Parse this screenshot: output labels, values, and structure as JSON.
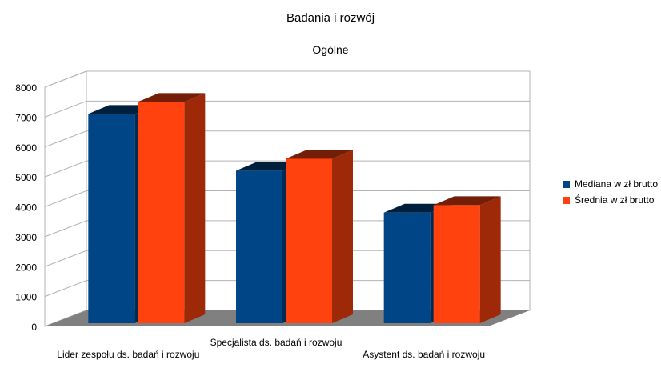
{
  "chart_data": {
    "type": "bar",
    "title": "Badania i rozwój",
    "subtitle": "Ogólne",
    "categories": [
      "Lider zespołu ds. badań i rozwoju",
      "Specjalista ds. badań i rozwoju",
      "Asystent ds. badań i rozwoju"
    ],
    "series": [
      {
        "name": "Mediana w zł brutto",
        "color": "#004586",
        "values": [
          7000,
          5100,
          3700
        ]
      },
      {
        "name": "Średnia w zł brutto",
        "color": "#ff420e",
        "values": [
          7400,
          5500,
          3950
        ]
      }
    ],
    "y_ticks": [
      "0",
      "1000",
      "2000",
      "3000",
      "4000",
      "5000",
      "6000",
      "7000",
      "8000"
    ],
    "ylim": [
      0,
      8000
    ],
    "grid": true,
    "legend": "right",
    "three_d": true
  }
}
